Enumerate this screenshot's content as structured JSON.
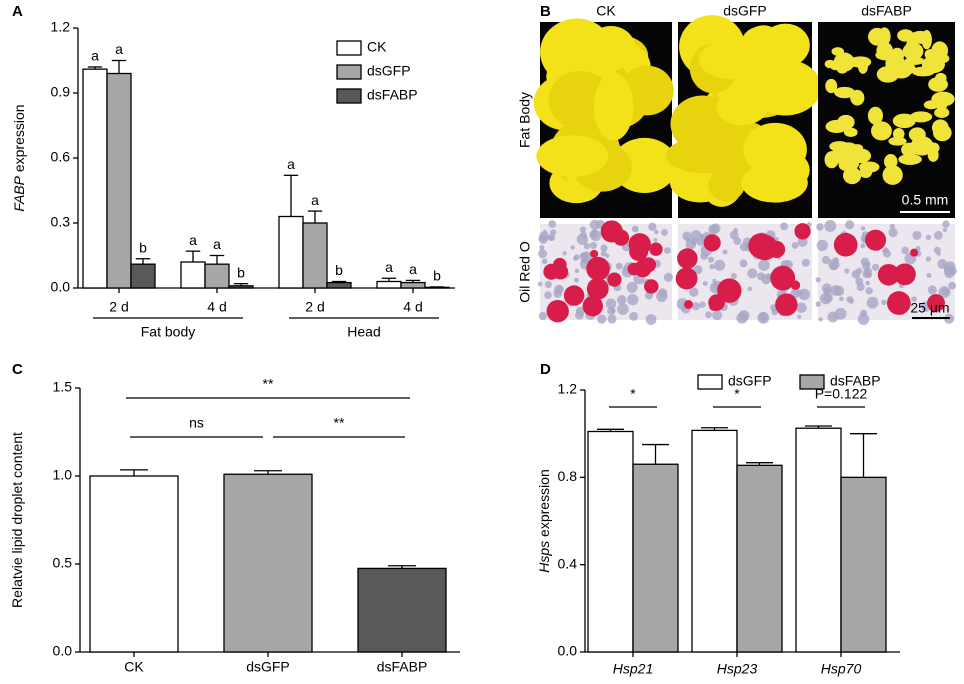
{
  "chart_data": [
    {
      "type": "bar",
      "panel_label": "A",
      "ylabel_italic": "FABP",
      "ylabel": "expression",
      "categories": [
        "2 d",
        "4 d",
        "2 d",
        "4 d"
      ],
      "groups": [
        {
          "label": "Fat body",
          "categories": [
            0,
            1
          ]
        },
        {
          "label": "Head",
          "categories": [
            2,
            3
          ]
        }
      ],
      "series": [
        {
          "name": "CK",
          "color": "#ffffff",
          "values": [
            1.01,
            0.12,
            0.33,
            0.03
          ],
          "errors": [
            0.01,
            0.05,
            0.19,
            0.015
          ],
          "annotations": [
            "a",
            "a",
            "a",
            "a"
          ]
        },
        {
          "name": "dsGFP",
          "color": "#a6a6a6",
          "values": [
            0.99,
            0.11,
            0.3,
            0.025
          ],
          "errors": [
            0.06,
            0.04,
            0.055,
            0.01
          ],
          "annotations": [
            "a",
            "a",
            "a",
            "a"
          ]
        },
        {
          "name": "dsFABP",
          "color": "#595959",
          "values": [
            0.11,
            0.01,
            0.025,
            0.003
          ],
          "errors": [
            0.025,
            0.01,
            0.005,
            0.002
          ],
          "annotations": [
            "b",
            "b",
            "b",
            "b"
          ]
        }
      ],
      "ylim": [
        0,
        1.2
      ],
      "yticks": [
        {
          "value": 0,
          "label": "0.0"
        },
        {
          "value": 0.3,
          "label": "0.3"
        },
        {
          "value": 0.6,
          "label": "0.6"
        },
        {
          "value": 0.9,
          "label": "0.9"
        },
        {
          "value": 1.2,
          "label": "1.2"
        }
      ],
      "legend": "top-right"
    },
    {
      "type": "bar",
      "panel_label": "C",
      "ylabel": "Relatvie lipid droplet content",
      "categories": [
        "CK",
        "dsGFP",
        "dsFABP"
      ],
      "values": [
        1.0,
        1.01,
        0.475
      ],
      "errors": [
        0.035,
        0.02,
        0.015
      ],
      "colors": [
        "#ffffff",
        "#a6a6a6",
        "#595959"
      ],
      "brackets": [
        {
          "from": 0,
          "to": 2,
          "label": "**"
        },
        {
          "from": 0,
          "to": 1,
          "label": "ns"
        },
        {
          "from": 1,
          "to": 2,
          "label": "**"
        }
      ],
      "ylim": [
        0,
        1.5
      ],
      "yticks": [
        {
          "value": 0,
          "label": "0.0"
        },
        {
          "value": 0.5,
          "label": "0.5"
        },
        {
          "value": 1,
          "label": "1.0"
        },
        {
          "value": 1.5,
          "label": "1.5"
        }
      ]
    },
    {
      "type": "bar",
      "panel_label": "D",
      "ylabel_italic": "Hsps",
      "ylabel": "expression",
      "categories": [
        "Hsp21",
        "Hsp23",
        "Hsp70"
      ],
      "series": [
        {
          "name": "dsGFP",
          "color": "#ffffff",
          "values": [
            1.01,
            1.015,
            1.025
          ],
          "errors": [
            0.01,
            0.012,
            0.01
          ]
        },
        {
          "name": "dsFABP",
          "color": "#a6a6a6",
          "values": [
            0.86,
            0.855,
            0.8
          ],
          "errors": [
            0.09,
            0.012,
            0.2
          ]
        }
      ],
      "annotations": [
        "*",
        "*",
        "P=0.122"
      ],
      "ylim": [
        0,
        1.2
      ],
      "yticks": [
        {
          "value": 0,
          "label": "0.0"
        },
        {
          "value": 0.4,
          "label": "0.4"
        },
        {
          "value": 0.8,
          "label": "0.8"
        },
        {
          "value": 1.2,
          "label": "1.2"
        }
      ],
      "legend": "top"
    }
  ],
  "image_panel": {
    "panel_label": "B",
    "columns": [
      "CK",
      "dsGFP",
      "dsFABP"
    ],
    "rows": [
      "Fat Body",
      "Oil Red O"
    ],
    "scale_bars": [
      "0.5 mm",
      "25 μm"
    ]
  }
}
